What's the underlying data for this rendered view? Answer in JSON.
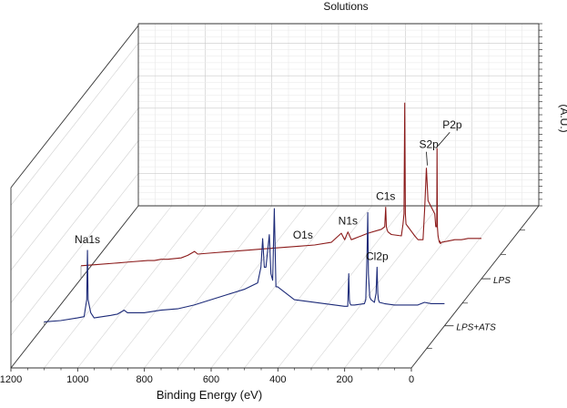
{
  "chart_data": {
    "type": "line",
    "title": "Solutions",
    "xlabel": "Binding Energy (eV)",
    "ylabel": "(A.U.)",
    "xlim": [
      1200,
      0
    ],
    "x_ticks": [
      1200,
      1000,
      800,
      600,
      400,
      200,
      0
    ],
    "grid": true,
    "series": [
      {
        "name": "LPS",
        "color": "#8b1a1a",
        "x": [
          1200,
          1150,
          1100,
          1050,
          1000,
          980,
          960,
          940,
          900,
          880,
          860,
          850,
          800,
          750,
          700,
          650,
          600,
          550,
          500,
          450,
          420,
          410,
          400,
          390,
          380,
          370,
          360,
          350,
          340,
          300,
          290,
          287,
          285,
          283,
          280,
          270,
          240,
          235,
          232,
          230,
          228,
          226,
          220,
          200,
          190,
          175,
          170,
          165,
          160,
          140,
          137,
          134,
          133,
          132,
          130,
          128,
          126,
          125,
          123,
          120,
          100,
          80,
          60,
          40,
          20,
          0
        ],
        "y": [
          0.1,
          0.11,
          0.12,
          0.13,
          0.14,
          0.14,
          0.15,
          0.15,
          0.16,
          0.18,
          0.21,
          0.19,
          0.2,
          0.21,
          0.22,
          0.23,
          0.24,
          0.25,
          0.26,
          0.28,
          0.35,
          0.3,
          0.36,
          0.3,
          0.31,
          0.32,
          0.33,
          0.34,
          0.35,
          0.38,
          0.4,
          0.55,
          0.4,
          0.38,
          0.36,
          0.34,
          0.33,
          0.42,
          0.5,
          1.35,
          0.5,
          0.42,
          0.4,
          0.33,
          0.3,
          0.3,
          0.55,
          0.85,
          0.6,
          0.5,
          0.4,
          0.4,
          1.0,
          0.4,
          0.33,
          0.3,
          0.28,
          0.29,
          0.27,
          0.28,
          0.29,
          0.3,
          0.3,
          0.31,
          0.31,
          0.31
        ]
      },
      {
        "name": "LPS+ATS",
        "color": "#1c2a78",
        "x": [
          1200,
          1150,
          1100,
          1080,
          1072,
          1070,
          1068,
          1060,
          1050,
          1000,
          980,
          960,
          950,
          900,
          850,
          800,
          750,
          700,
          650,
          600,
          560,
          550,
          545,
          540,
          535,
          525,
          520,
          515,
          510,
          505,
          500,
          450,
          300,
          290,
          287,
          285,
          283,
          280,
          270,
          240,
          236,
          232,
          230,
          228,
          224,
          220,
          210,
          205,
          202,
          200,
          198,
          195,
          180,
          150,
          100,
          80,
          60,
          40,
          20,
          0
        ],
        "y": [
          0.03,
          0.04,
          0.06,
          0.07,
          0.2,
          0.58,
          0.2,
          0.1,
          0.06,
          0.08,
          0.09,
          0.12,
          0.1,
          0.1,
          0.12,
          0.13,
          0.16,
          0.2,
          0.24,
          0.28,
          0.33,
          0.45,
          0.67,
          0.45,
          0.45,
          0.7,
          0.4,
          0.35,
          0.9,
          0.3,
          0.3,
          0.2,
          0.15,
          0.15,
          0.4,
          0.2,
          0.17,
          0.16,
          0.16,
          0.17,
          0.2,
          0.55,
          0.87,
          0.4,
          0.22,
          0.2,
          0.18,
          0.25,
          0.45,
          0.25,
          0.2,
          0.18,
          0.17,
          0.16,
          0.16,
          0.16,
          0.18,
          0.17,
          0.17,
          0.17
        ]
      }
    ],
    "annotations": [
      {
        "text": "O1s",
        "series": "LPS",
        "x": 535
      },
      {
        "text": "N1s",
        "series": "LPS",
        "x": 400
      },
      {
        "text": "C1s",
        "series": "LPS",
        "x": 285
      },
      {
        "text": "S2p",
        "series": "LPS",
        "x": 165
      },
      {
        "text": "P2p",
        "series": "LPS",
        "x": 133
      },
      {
        "text": "Na1s",
        "series": "LPS+ATS",
        "x": 1070
      },
      {
        "text": "Cl2p",
        "series": "LPS+ATS",
        "x": 200
      }
    ]
  }
}
